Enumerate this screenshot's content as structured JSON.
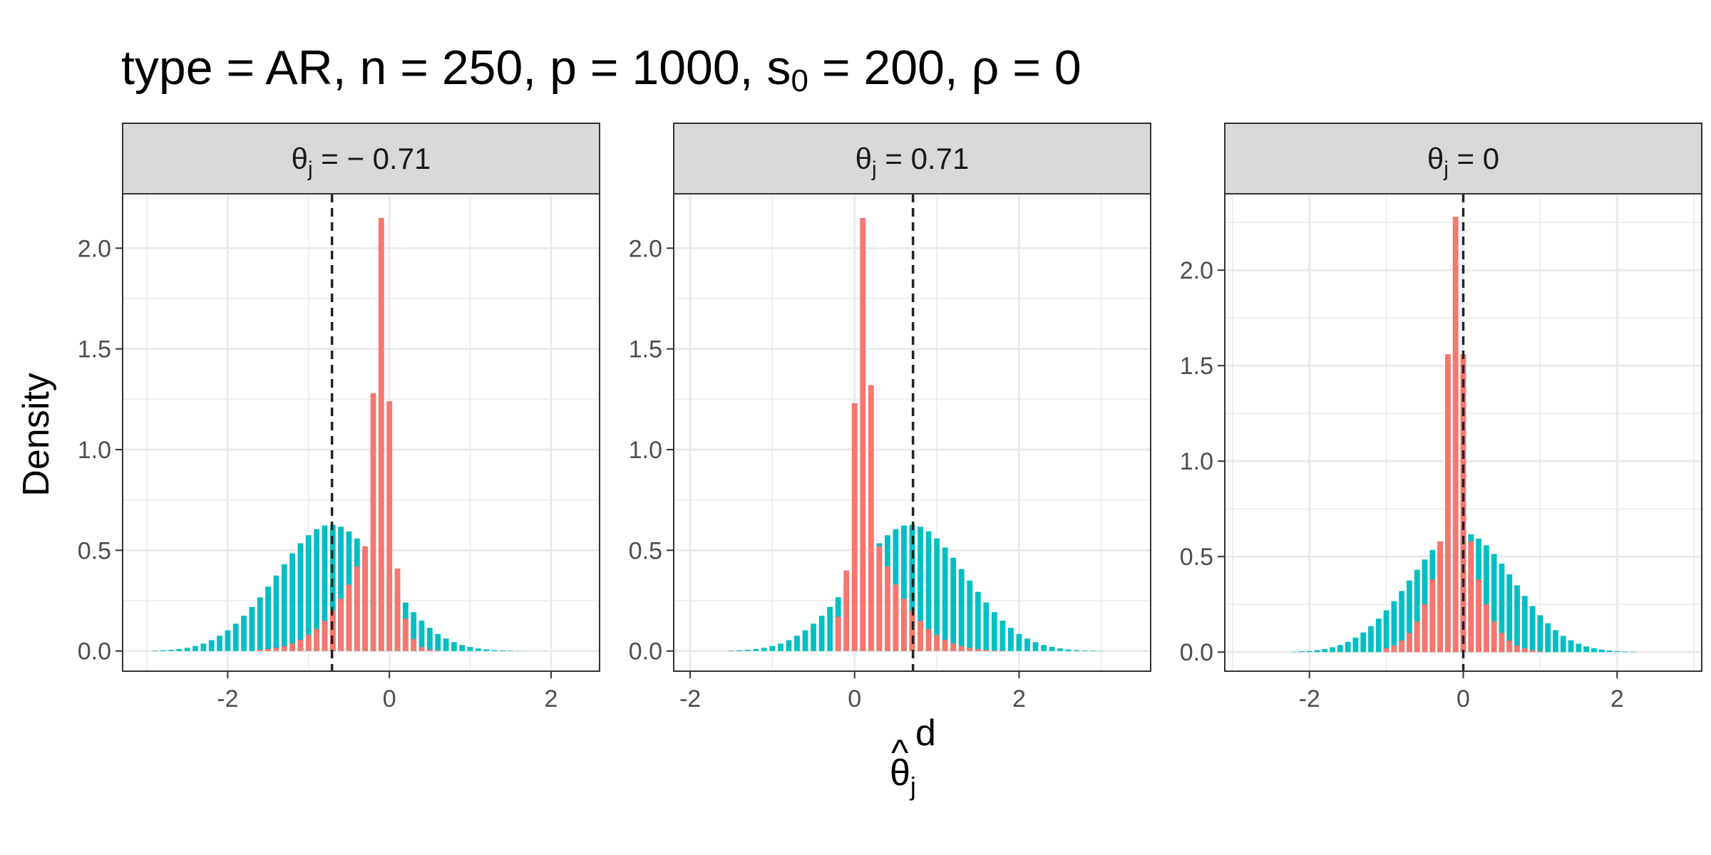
{
  "chart_data": {
    "type": "bar",
    "title": {
      "parts": [
        {
          "text": "type = AR, n = 250, p = 1000, s"
        },
        {
          "text": "0",
          "sub": true
        },
        {
          "text": " = 200, ρ = 0"
        }
      ]
    },
    "ylabel": "Density",
    "xlabel": {
      "base": "θ",
      "hat": "^",
      "sub": "j",
      "sup": "d"
    },
    "colors": {
      "red": "#F8766D",
      "teal": "#00BFC4",
      "strip": "#D9D9D9",
      "grid": "#EBEBEB",
      "frame": "#333333"
    },
    "panels": [
      {
        "strip": {
          "theta": "θ",
          "sub": "j",
          "eq": " = − 0.71"
        },
        "vline": -0.71,
        "xlim": [
          -3.3,
          2.6
        ],
        "ylim": [
          -0.1,
          2.27
        ],
        "xticks": [
          -2,
          0,
          2
        ],
        "xtick_labels": [
          "-2",
          "0",
          "2"
        ],
        "yticks": [
          0.0,
          0.5,
          1.0,
          1.5,
          2.0
        ],
        "ytick_labels": [
          "0.0",
          "0.5",
          "1.0",
          "1.5",
          "2.0"
        ],
        "series": [
          {
            "name": "",
            "color": "teal",
            "start": -2.9,
            "step": 0.1,
            "values": [
              0.002,
              0.004,
              0.006,
              0.01,
              0.016,
              0.025,
              0.037,
              0.054,
              0.076,
              0.103,
              0.136,
              0.175,
              0.219,
              0.267,
              0.32,
              0.375,
              0.431,
              0.485,
              0.535,
              0.575,
              0.605,
              0.623,
              0.627,
              0.617,
              0.594,
              0.559,
              0.514,
              0.463,
              0.407,
              0.35,
              0.294,
              0.241,
              0.193,
              0.151,
              0.115,
              0.085,
              0.062,
              0.044,
              0.03,
              0.02,
              0.013,
              0.008,
              0.005,
              0.003,
              0.002,
              0.001
            ]
          },
          {
            "name": "",
            "color": "red",
            "start": -1.6,
            "step": 0.1,
            "values": [
              0.006,
              0.01,
              0.016,
              0.025,
              0.038,
              0.056,
              0.08,
              0.11,
              0.15,
              0.2,
              0.26,
              0.33,
              0.42,
              0.52,
              1.28,
              2.15,
              1.24,
              0.41,
              0.16,
              0.06,
              0.02,
              0.008,
              0.003
            ]
          }
        ]
      },
      {
        "strip": {
          "theta": "θ",
          "sub": "j",
          "eq": " = 0.71"
        },
        "vline": 0.71,
        "xlim": [
          -2.2,
          3.6
        ],
        "ylim": [
          -0.1,
          2.27
        ],
        "xticks": [
          -2,
          0,
          2
        ],
        "xtick_labels": [
          "-2",
          "0",
          "2"
        ],
        "yticks": [
          0.0,
          0.5,
          1.0,
          1.5,
          2.0
        ],
        "ytick_labels": [
          "0.0",
          "0.5",
          "1.0",
          "1.5",
          "2.0"
        ],
        "series": [
          {
            "name": "",
            "color": "teal",
            "start": -1.5,
            "step": 0.1,
            "values": [
              0.002,
              0.004,
              0.006,
              0.01,
              0.016,
              0.025,
              0.037,
              0.054,
              0.076,
              0.103,
              0.136,
              0.175,
              0.219,
              0.267,
              0.32,
              0.375,
              0.431,
              0.485,
              0.535,
              0.575,
              0.605,
              0.623,
              0.627,
              0.617,
              0.594,
              0.559,
              0.514,
              0.463,
              0.407,
              0.35,
              0.294,
              0.241,
              0.193,
              0.151,
              0.115,
              0.085,
              0.062,
              0.044,
              0.03,
              0.02,
              0.013,
              0.008,
              0.005,
              0.003,
              0.002,
              0.001
            ]
          },
          {
            "name": "",
            "color": "red",
            "start": -0.2,
            "step": 0.1,
            "values": [
              0.17,
              0.4,
              1.23,
              2.15,
              1.32,
              0.52,
              0.42,
              0.33,
              0.26,
              0.2,
              0.15,
              0.11,
              0.08,
              0.056,
              0.038,
              0.025,
              0.016,
              0.01,
              0.006,
              0.003,
              0.002
            ]
          }
        ]
      },
      {
        "strip": {
          "theta": "θ",
          "sub": "j",
          "eq": " = 0"
        },
        "vline": 0,
        "xlim": [
          -3.1,
          3.1
        ],
        "ylim": [
          -0.1,
          2.4
        ],
        "xticks": [
          -2,
          0,
          2
        ],
        "xtick_labels": [
          "-2",
          "0",
          "2"
        ],
        "yticks": [
          0.0,
          0.5,
          1.0,
          1.5,
          2.0
        ],
        "ytick_labels": [
          "0.0",
          "0.5",
          "1.0",
          "1.5",
          "2.0"
        ],
        "series": [
          {
            "name": "",
            "color": "teal",
            "start": -2.2,
            "step": 0.1,
            "values": [
              0.002,
              0.004,
              0.006,
              0.01,
              0.016,
              0.025,
              0.037,
              0.054,
              0.076,
              0.103,
              0.136,
              0.175,
              0.219,
              0.267,
              0.32,
              0.375,
              0.431,
              0.485,
              0.535,
              0.575,
              0.605,
              0.623,
              0.627,
              0.617,
              0.594,
              0.559,
              0.514,
              0.463,
              0.407,
              0.35,
              0.294,
              0.241,
              0.193,
              0.151,
              0.115,
              0.085,
              0.062,
              0.044,
              0.03,
              0.02,
              0.013,
              0.008,
              0.005,
              0.003,
              0.002
            ]
          },
          {
            "name": "",
            "color": "red",
            "start": -1.0,
            "step": 0.1,
            "values": [
              0.02,
              0.035,
              0.06,
              0.1,
              0.16,
              0.25,
              0.38,
              0.58,
              1.56,
              2.28,
              1.56,
              0.58,
              0.38,
              0.25,
              0.16,
              0.1,
              0.06,
              0.035,
              0.02,
              0.01,
              0.005
            ]
          }
        ]
      }
    ]
  }
}
